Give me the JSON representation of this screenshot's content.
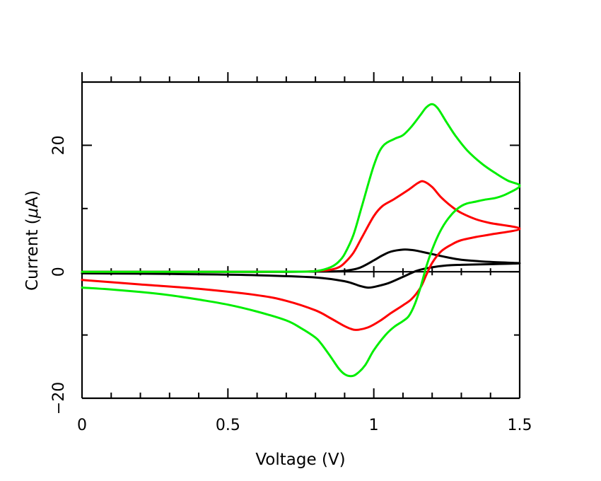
{
  "chart_data": {
    "type": "line",
    "title": "",
    "xlabel": "Voltage (V)",
    "ylabel_prefix": "Current (",
    "ylabel_mu": "μ",
    "ylabel_suffix": "A)",
    "xlim": [
      0,
      1.5
    ],
    "ylim": [
      -20,
      30
    ],
    "xticks": [
      0,
      0.5,
      1,
      1.5
    ],
    "xtick_labels": [
      "0",
      "0.5",
      "1",
      "1.5"
    ],
    "yticks": [
      -20,
      0,
      20
    ],
    "ytick_labels": [
      "−20",
      "0",
      "20"
    ],
    "legend": "none",
    "grid": false,
    "series": [
      {
        "name": "black",
        "color": "#000000",
        "forward": {
          "x": [
            0,
            0.2,
            0.5,
            0.7,
            0.85,
            0.9,
            0.95,
            1.0,
            1.03,
            1.06,
            1.1,
            1.13,
            1.15,
            1.2,
            1.25,
            1.3,
            1.4,
            1.5
          ],
          "y": [
            0,
            0,
            0,
            0,
            0.05,
            0.15,
            0.6,
            1.8,
            2.6,
            3.2,
            3.5,
            3.45,
            3.3,
            2.8,
            2.3,
            1.9,
            1.55,
            1.35
          ]
        },
        "reverse": {
          "x": [
            1.5,
            1.4,
            1.3,
            1.25,
            1.2,
            1.15,
            1.1,
            1.05,
            1.0,
            0.98,
            0.95,
            0.9,
            0.8,
            0.6,
            0.4,
            0.2,
            0
          ],
          "y": [
            1.35,
            1.2,
            1.1,
            1.0,
            0.7,
            0.2,
            -0.8,
            -1.8,
            -2.4,
            -2.5,
            -2.2,
            -1.5,
            -0.9,
            -0.55,
            -0.4,
            -0.3,
            -0.25
          ]
        }
      },
      {
        "name": "red",
        "color": "#ff0000",
        "forward": {
          "x": [
            0,
            0.3,
            0.6,
            0.75,
            0.8,
            0.85,
            0.88,
            0.9,
            0.93,
            0.96,
            1.0,
            1.03,
            1.07,
            1.12,
            1.15,
            1.17,
            1.2,
            1.23,
            1.27,
            1.3,
            1.35,
            1.4,
            1.5
          ],
          "y": [
            0,
            0,
            0,
            0.02,
            0.1,
            0.3,
            0.7,
            1.4,
            3,
            5.5,
            8.8,
            10.4,
            11.5,
            13,
            14,
            14.3,
            13.4,
            11.8,
            10.2,
            9.3,
            8.3,
            7.7,
            6.8
          ]
        },
        "reverse": {
          "x": [
            1.5,
            1.4,
            1.35,
            1.3,
            1.27,
            1.23,
            1.2,
            1.18,
            1.16,
            1.13,
            1.1,
            1.06,
            1.02,
            0.98,
            0.94,
            0.92,
            0.9,
            0.85,
            0.8,
            0.7,
            0.6,
            0.4,
            0.2,
            0
          ],
          "y": [
            6.8,
            5.9,
            5.5,
            5,
            4.4,
            3.2,
            1.4,
            -0.5,
            -2.5,
            -4.3,
            -5.3,
            -6.5,
            -7.8,
            -8.8,
            -9.2,
            -9.0,
            -8.6,
            -7.3,
            -6.1,
            -4.6,
            -3.7,
            -2.7,
            -2.0,
            -1.3
          ]
        }
      },
      {
        "name": "green",
        "color": "#00ee00",
        "forward": {
          "x": [
            0,
            0.3,
            0.6,
            0.75,
            0.78,
            0.8,
            0.82,
            0.84,
            0.86,
            0.88,
            0.9,
            0.93,
            0.96,
            1.0,
            1.03,
            1.07,
            1.1,
            1.13,
            1.16,
            1.18,
            1.2,
            1.22,
            1.25,
            1.28,
            1.32,
            1.37,
            1.42,
            1.46,
            1.5
          ],
          "y": [
            0,
            0,
            0,
            0.02,
            0.05,
            0.1,
            0.25,
            0.5,
            0.9,
            1.6,
            2.8,
            5.8,
            10.5,
            16.8,
            19.8,
            21,
            21.6,
            23,
            24.8,
            26,
            26.5,
            25.8,
            23.6,
            21.5,
            19.2,
            17.1,
            15.5,
            14.4,
            13.6
          ]
        },
        "reverse": {
          "x": [
            1.5,
            1.46,
            1.42,
            1.38,
            1.35,
            1.32,
            1.3,
            1.28,
            1.26,
            1.24,
            1.22,
            1.2,
            1.18,
            1.16,
            1.14,
            1.12,
            1.1,
            1.07,
            1.04,
            1.0,
            0.97,
            0.94,
            0.92,
            0.9,
            0.88,
            0.85,
            0.82,
            0.8,
            0.75,
            0.7,
            0.6,
            0.5,
            0.4,
            0.3,
            0.2,
            0.1,
            0
          ],
          "y": [
            13.6,
            12.4,
            11.7,
            11.4,
            11.1,
            10.8,
            10.4,
            9.7,
            8.7,
            7.4,
            5.7,
            3.5,
            0.8,
            -2.5,
            -5.2,
            -7.0,
            -7.8,
            -8.7,
            -10.0,
            -12.4,
            -14.8,
            -16.2,
            -16.5,
            -16.2,
            -15.3,
            -13.3,
            -11.4,
            -10.4,
            -8.9,
            -7.7,
            -6.3,
            -5.2,
            -4.4,
            -3.7,
            -3.2,
            -2.8,
            -2.5
          ]
        }
      }
    ]
  }
}
